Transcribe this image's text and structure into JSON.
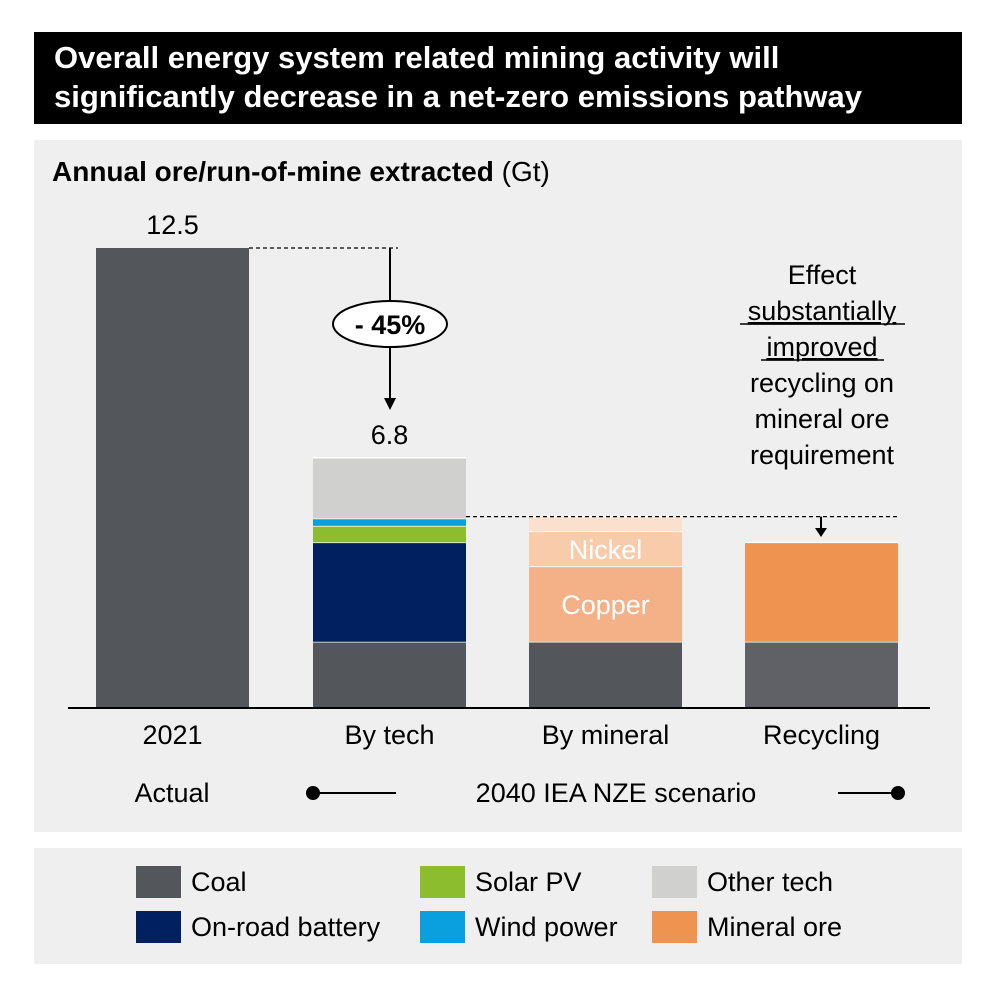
{
  "banner": {
    "line1": "Overall energy system related mining activity will",
    "line2": "significantly decrease in a net-zero emissions pathway"
  },
  "chart_title": {
    "bold": "Annual ore/run-of-mine extracted",
    "unit": "(Gt)"
  },
  "colors": {
    "coal": "#53565a",
    "onroad_battery": "#002060",
    "solar_pv": "#8cbd2e",
    "wind_power": "#0aa0e0",
    "other_tech": "#d0d0ce",
    "mineral_ore": "#ef9351",
    "copper": "#f4b187",
    "nickel": "#f8ccab",
    "other_mineral": "#fbe0ce",
    "recycling_coal": "#5f6166"
  },
  "chart_data": {
    "type": "bar",
    "stacked": true,
    "categories": [
      "2021",
      "By tech",
      "By mineral",
      "Recycling"
    ],
    "ylim": [
      0,
      13
    ],
    "totals": [
      12.5,
      6.8,
      5.2,
      4.5
    ],
    "total_labels": [
      "12.5",
      "6.8",
      "",
      ""
    ],
    "series": [
      {
        "name": "Coal",
        "color_key": "coal",
        "values": [
          12.5,
          1.8,
          1.8,
          1.8
        ]
      },
      {
        "name": "On-road battery",
        "color_key": "onroad_battery",
        "values": [
          0,
          2.7,
          0,
          0
        ]
      },
      {
        "name": "Solar PV",
        "color_key": "solar_pv",
        "values": [
          0,
          0.45,
          0,
          0
        ]
      },
      {
        "name": "Wind power",
        "color_key": "wind_power",
        "values": [
          0,
          0.2,
          0,
          0
        ]
      },
      {
        "name": "Other tech",
        "color_key": "other_tech",
        "values": [
          0,
          1.65,
          0,
          0
        ]
      },
      {
        "name": "Copper",
        "color_key": "copper",
        "values": [
          0,
          0,
          2.05,
          0
        ]
      },
      {
        "name": "Nickel",
        "color_key": "nickel",
        "values": [
          0,
          0,
          0.95,
          0
        ]
      },
      {
        "name": "Other mineral",
        "color_key": "other_mineral",
        "values": [
          0,
          0,
          0.4,
          0
        ]
      },
      {
        "name": "Mineral ore",
        "color_key": "mineral_ore",
        "values": [
          0,
          0,
          0,
          2.7
        ]
      }
    ],
    "segment_labels": [
      {
        "category": "By mineral",
        "series": "Copper",
        "text": "Copper"
      },
      {
        "category": "By mineral",
        "series": "Nickel",
        "text": "Nickel"
      }
    ],
    "reduction_label": "- 45%",
    "recycling_note": {
      "line1": "Effect",
      "line2": "substantially",
      "line3": "improved",
      "line4": "recycling on",
      "line5": "mineral ore",
      "line6": "requirement"
    },
    "scenario_labels": {
      "actual": "Actual",
      "scenario": "2040 IEA NZE scenario"
    }
  },
  "legend": [
    {
      "label": "Coal",
      "color_key": "coal"
    },
    {
      "label": "Solar PV",
      "color_key": "solar_pv"
    },
    {
      "label": "Other tech",
      "color_key": "other_tech"
    },
    {
      "label": "On-road battery",
      "color_key": "onroad_battery"
    },
    {
      "label": "Wind power",
      "color_key": "wind_power"
    },
    {
      "label": "Mineral ore",
      "color_key": "mineral_ore"
    }
  ]
}
